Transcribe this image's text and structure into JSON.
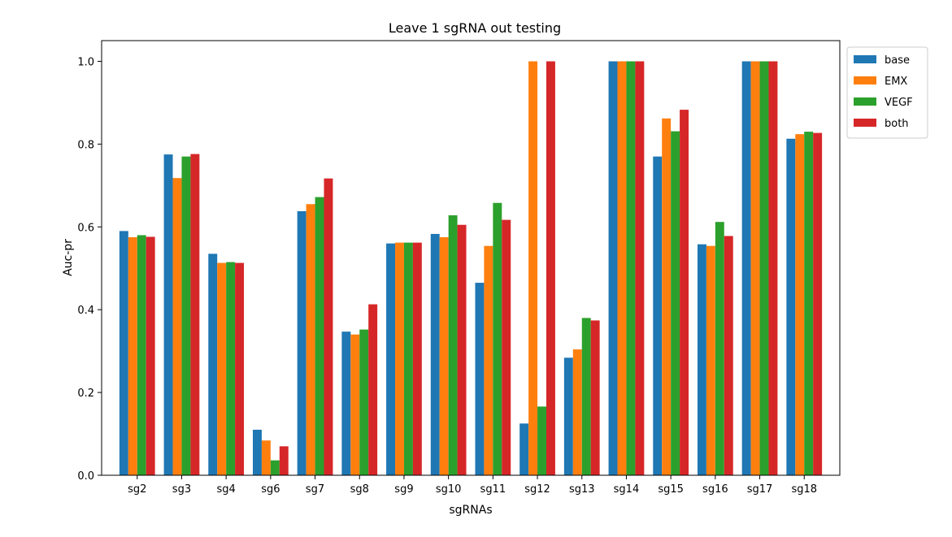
{
  "chart_data": {
    "type": "bar",
    "title": "Leave 1 sgRNA out testing",
    "xlabel": "sgRNAs",
    "ylabel": "Auc-pr",
    "ylim": [
      0,
      1.05
    ],
    "yticks": [
      "0.0",
      "0.2",
      "0.4",
      "0.6",
      "0.8",
      "1.0"
    ],
    "grid": false,
    "legend_position": "outside top-right",
    "categories": [
      "sg2",
      "sg3",
      "sg4",
      "sg6",
      "sg7",
      "sg8",
      "sg9",
      "sg10",
      "sg11",
      "sg12",
      "sg13",
      "sg14",
      "sg15",
      "sg16",
      "sg17",
      "sg18"
    ],
    "series": [
      {
        "name": "base",
        "color": "#1f77b4",
        "values": [
          0.59,
          0.775,
          0.535,
          0.11,
          0.638,
          0.347,
          0.56,
          0.583,
          0.465,
          0.125,
          0.284,
          1.0,
          0.77,
          0.558,
          1.0,
          0.813
        ]
      },
      {
        "name": "EMX",
        "color": "#ff7f0e",
        "values": [
          0.575,
          0.718,
          0.513,
          0.084,
          0.655,
          0.34,
          0.562,
          0.575,
          0.554,
          1.0,
          0.304,
          1.0,
          0.862,
          0.554,
          1.0,
          0.824
        ]
      },
      {
        "name": "VEGF",
        "color": "#2ca02c",
        "values": [
          0.58,
          0.77,
          0.515,
          0.036,
          0.672,
          0.352,
          0.562,
          0.628,
          0.658,
          0.166,
          0.38,
          1.0,
          0.831,
          0.612,
          1.0,
          0.83
        ]
      },
      {
        "name": "both",
        "color": "#d62728",
        "values": [
          0.576,
          0.776,
          0.513,
          0.07,
          0.717,
          0.413,
          0.562,
          0.605,
          0.617,
          1.0,
          0.374,
          1.0,
          0.883,
          0.578,
          1.0,
          0.827
        ]
      }
    ]
  }
}
